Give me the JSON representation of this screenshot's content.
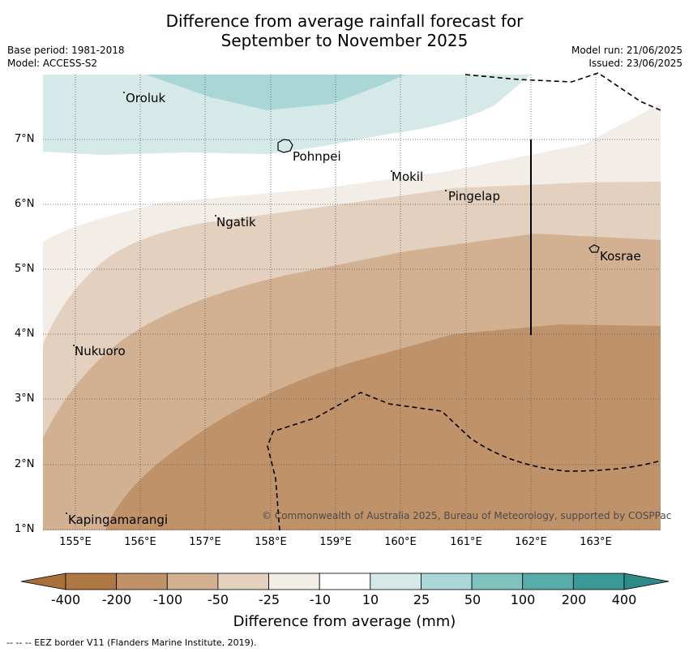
{
  "title_line1": "Difference from average rainfall forecast for",
  "title_line2": "September to November 2025",
  "meta_left": {
    "base_period": "Base period: 1981-2018",
    "model": "Model: ACCESS-S2"
  },
  "meta_right": {
    "model_run": "Model run: 21/06/2025",
    "issued": "Issued: 23/06/2025"
  },
  "lat_labels": [
    "7°N",
    "6°N",
    "5°N",
    "4°N",
    "3°N",
    "2°N",
    "1°N"
  ],
  "lon_labels": [
    "155°E",
    "156°E",
    "157°E",
    "158°E",
    "159°E",
    "160°E",
    "161°E",
    "162°E",
    "163°E"
  ],
  "places": {
    "oroluk": "Oroluk",
    "pohnpei": "Pohnpei",
    "mokil": "Mokil",
    "pingelap": "Pingelap",
    "ngatik": "Ngatik",
    "kosrae": "Kosrae",
    "nukuoro": "Nukuoro",
    "kapingamarangi": "Kapingamarangi"
  },
  "credit": "© Commonwealth of Australia 2025, Bureau of Meteorology, supported by COSPPac",
  "colorbar": {
    "ticks": [
      "-400",
      "-200",
      "-100",
      "-50",
      "-25",
      "-10",
      "10",
      "25",
      "50",
      "100",
      "200",
      "400"
    ],
    "colors": [
      "#a86f3a",
      "#ae7743",
      "#c0926a",
      "#d2b193",
      "#e3d0be",
      "#f2ede7",
      "#ffffff",
      "#d5e9e8",
      "#abd6d6",
      "#7fc3c1",
      "#58acaa",
      "#3a9896",
      "#2e8a88"
    ],
    "title": "Difference from average (mm)"
  },
  "footer": "-- -- -- EEZ border V11 (Flanders Marine Institute, 2019)."
}
